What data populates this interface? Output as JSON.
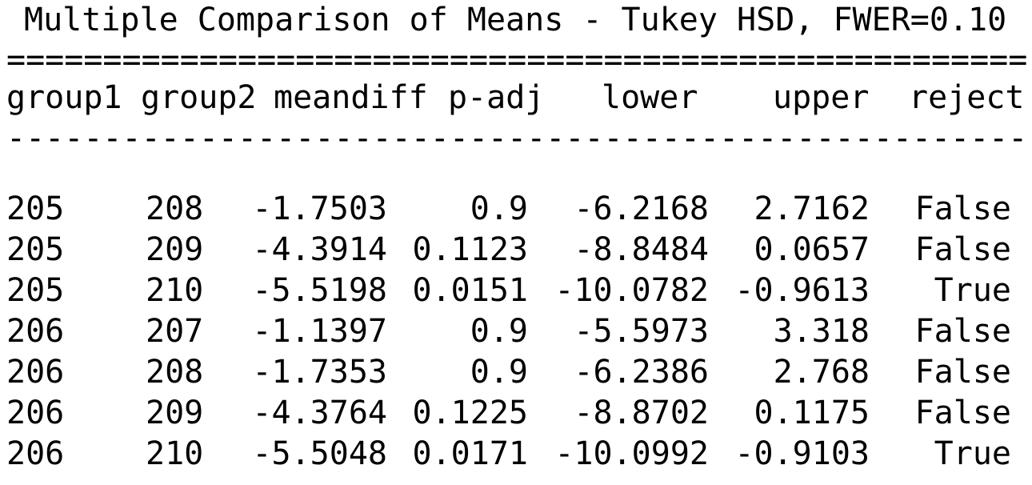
{
  "title": "Multiple Comparison of Means - Tukey HSD, FWER=0.10",
  "separator_top": "======================================================",
  "separator_mid": "------------------------------------------------------",
  "columns": {
    "group1": "group1",
    "group2": "group2",
    "meandiff": "meandiff",
    "p_adj": "p-adj",
    "lower": "lower",
    "upper": "upper",
    "reject": "reject"
  },
  "rows": [
    {
      "group1": "205",
      "group2": "208",
      "meandiff": "-1.7503",
      "p_adj": "0.9",
      "lower": "-6.2168",
      "upper": "2.7162",
      "reject": "False"
    },
    {
      "group1": "205",
      "group2": "209",
      "meandiff": "-4.3914",
      "p_adj": "0.1123",
      "lower": "-8.8484",
      "upper": "0.0657",
      "reject": "False"
    },
    {
      "group1": "205",
      "group2": "210",
      "meandiff": "-5.5198",
      "p_adj": "0.0151",
      "lower": "-10.0782",
      "upper": "-0.9613",
      "reject": "True"
    },
    {
      "group1": "206",
      "group2": "207",
      "meandiff": "-1.1397",
      "p_adj": "0.9",
      "lower": "-5.5973",
      "upper": "3.318",
      "reject": "False"
    },
    {
      "group1": "206",
      "group2": "208",
      "meandiff": "-1.7353",
      "p_adj": "0.9",
      "lower": "-6.2386",
      "upper": "2.768",
      "reject": "False"
    },
    {
      "group1": "206",
      "group2": "209",
      "meandiff": "-4.3764",
      "p_adj": "0.1225",
      "lower": "-8.8702",
      "upper": "0.1175",
      "reject": "False"
    },
    {
      "group1": "206",
      "group2": "210",
      "meandiff": "-5.5048",
      "p_adj": "0.0171",
      "lower": "-10.0992",
      "upper": "-0.9103",
      "reject": "True"
    }
  ]
}
